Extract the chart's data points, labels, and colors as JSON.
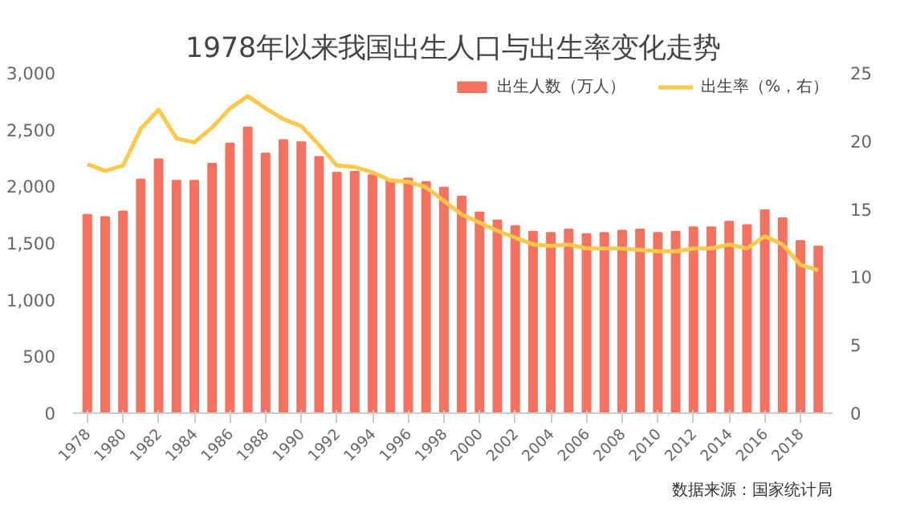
{
  "chart_data": {
    "type": "bar",
    "title": "1978年以来我国出生人口与出生率变化走势",
    "categories": [
      "1978",
      null,
      "1980",
      null,
      "1982",
      null,
      "1984",
      null,
      "1986",
      null,
      "1988",
      null,
      "1990",
      null,
      "1992",
      null,
      "1994",
      null,
      "1996",
      null,
      "1998",
      null,
      "2000",
      null,
      "2002",
      null,
      "2004",
      null,
      "2006",
      null,
      "2008",
      null,
      "2010",
      null,
      "2012",
      null,
      "2014",
      null,
      "2016",
      null,
      "2018",
      null
    ],
    "series": [
      {
        "name": "出生人数（万人）",
        "color": "#f4725f",
        "values": [
          1750,
          1730,
          1780,
          2060,
          2240,
          2050,
          2050,
          2200,
          2380,
          2520,
          2290,
          2410,
          2390,
          2260,
          2120,
          2130,
          2100,
          2060,
          2070,
          2040,
          1990,
          1910,
          1770,
          1700,
          1650,
          1600,
          1590,
          1620,
          1580,
          1590,
          1610,
          1620,
          1590,
          1600,
          1640,
          1640,
          1690,
          1660,
          1790,
          1720,
          1520,
          1470
        ]
      },
      {
        "name": "出生率（%，右）",
        "type": "line",
        "axis": "y2",
        "color": "#ffc84a",
        "values": [
          18.3,
          17.8,
          18.2,
          20.9,
          22.3,
          20.2,
          19.9,
          21.0,
          22.4,
          23.3,
          22.4,
          21.6,
          21.1,
          19.7,
          18.2,
          18.1,
          17.7,
          17.1,
          17.0,
          16.6,
          15.6,
          14.6,
          14.0,
          13.4,
          12.9,
          12.4,
          12.3,
          12.4,
          12.1,
          12.1,
          12.1,
          12.0,
          11.9,
          11.9,
          12.1,
          12.1,
          12.4,
          12.1,
          13.0,
          12.4,
          10.9,
          10.5
        ]
      }
    ],
    "ylim": [
      0,
      3000
    ],
    "yticks": [
      {
        "value": 0,
        "label": "0"
      },
      {
        "value": 500,
        "label": "500"
      },
      {
        "value": 1000,
        "label": "1,000"
      },
      {
        "value": 1500,
        "label": "1,500"
      },
      {
        "value": 2000,
        "label": "2,000"
      },
      {
        "value": 2500,
        "label": "2,500"
      },
      {
        "value": 3000,
        "label": "3,000"
      }
    ],
    "y2lim": [
      0,
      25
    ],
    "y2ticks": [
      0,
      5,
      10,
      15,
      20,
      25
    ],
    "grid": false,
    "legend": "top right",
    "annotations": [
      "数据来源：国家统计局"
    ]
  }
}
